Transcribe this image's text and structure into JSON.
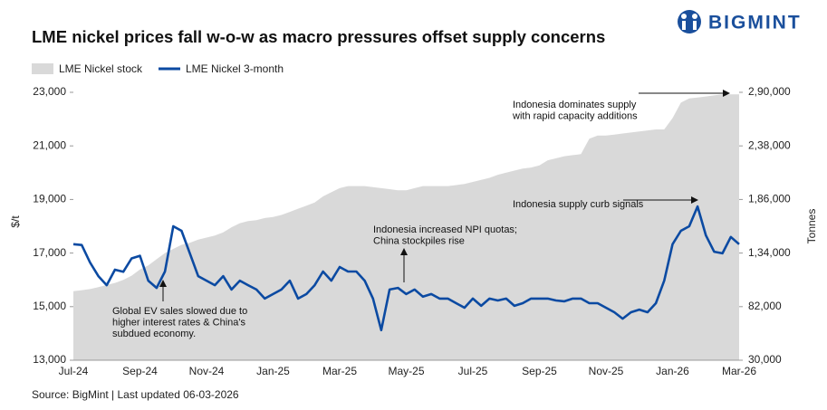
{
  "logo": "BIGMINT",
  "chart_data": {
    "type": "line-area",
    "title": "LME nickel prices fall w-o-w as macro pressures offset supply concerns",
    "source": "Source: BigMint | Last updated 06-03-2026",
    "ylabel": "$/t",
    "y2label": "Tonnes",
    "categories": [
      "Jul-24",
      null,
      null,
      null,
      null,
      null,
      null,
      null,
      "Sep-24",
      null,
      null,
      null,
      null,
      null,
      null,
      null,
      "Nov-24",
      null,
      null,
      null,
      null,
      null,
      null,
      null,
      "Jan-25",
      null,
      null,
      null,
      null,
      null,
      null,
      null,
      "Mar-25",
      null,
      null,
      null,
      null,
      null,
      null,
      null,
      "May-25",
      null,
      null,
      null,
      null,
      null,
      null,
      null,
      "Jul-25",
      null,
      null,
      null,
      null,
      null,
      null,
      null,
      "Sep-25",
      null,
      null,
      null,
      null,
      null,
      null,
      null,
      "Nov-25",
      null,
      null,
      null,
      null,
      null,
      null,
      null,
      "Jan-26",
      null,
      null,
      null,
      null,
      null,
      null,
      null,
      "Mar-26"
    ],
    "series": [
      {
        "name": "LME Nickel stock",
        "color": "#d9d9d9",
        "axis": "y2",
        "kind": "area",
        "values": [
          97000,
          98000,
          99000,
          101000,
          103000,
          105000,
          108000,
          112000,
          118000,
          122000,
          128000,
          134000,
          138000,
          142000,
          144000,
          147000,
          149000,
          151000,
          154000,
          159000,
          163000,
          165000,
          166000,
          168000,
          169000,
          171000,
          174000,
          177000,
          180000,
          183000,
          189000,
          193000,
          197000,
          199000,
          199000,
          199000,
          198000,
          197000,
          196000,
          195000,
          195000,
          197000,
          199000,
          199000,
          199000,
          199000,
          200000,
          201000,
          203000,
          205000,
          207000,
          210000,
          212000,
          214000,
          216000,
          217000,
          219000,
          224000,
          226000,
          228000,
          229000,
          230000,
          245000,
          248000,
          248000,
          249000,
          250000,
          251000,
          252000,
          253000,
          254000,
          254000,
          265000,
          280000,
          284000,
          285000,
          286000,
          287000,
          288000,
          288000,
          288000
        ]
      },
      {
        "name": "LME Nickel 3-month",
        "color": "#0b4aa2",
        "kind": "line",
        "values": [
          17330,
          17300,
          16650,
          16140,
          15800,
          16380,
          16300,
          16800,
          16900,
          15970,
          15700,
          16310,
          18000,
          17830,
          16990,
          16140,
          15970,
          15800,
          16140,
          15640,
          15970,
          15800,
          15640,
          15300,
          15470,
          15640,
          15970,
          15300,
          15470,
          15800,
          16310,
          15970,
          16480,
          16310,
          16310,
          15970,
          15300,
          14120,
          15640,
          15700,
          15470,
          15640,
          15370,
          15470,
          15300,
          15300,
          15130,
          14960,
          15300,
          15030,
          15300,
          15230,
          15300,
          15030,
          15130,
          15300,
          15300,
          15300,
          15230,
          15200,
          15300,
          15300,
          15130,
          15130,
          14960,
          14790,
          14550,
          14790,
          14890,
          14790,
          15130,
          15970,
          17330,
          17830,
          18000,
          18740,
          17660,
          17050,
          16990,
          17600,
          17330
        ]
      }
    ],
    "ylim": [
      13000,
      23000
    ],
    "yticks": [
      {
        "value": 13000,
        "label": "13,000"
      },
      {
        "value": 15000,
        "label": "15,000"
      },
      {
        "value": 17000,
        "label": "17,000"
      },
      {
        "value": 19000,
        "label": "19,000"
      },
      {
        "value": 21000,
        "label": "21,000"
      },
      {
        "value": 23000,
        "label": "23,000"
      }
    ],
    "y2lim": [
      30000,
      290000
    ],
    "y2ticks": [
      {
        "value": 30000,
        "label": "30,000"
      },
      {
        "value": 82000,
        "label": "82,000"
      },
      {
        "value": 134000,
        "label": "1,34,000"
      },
      {
        "value": 186000,
        "label": "1,86,000"
      },
      {
        "value": 238000,
        "label": "2,38,000"
      },
      {
        "value": 290000,
        "label": "2,90,000"
      }
    ],
    "annotations": [
      {
        "text": [
          "Indonesia dominates supply",
          "with rapid capacity additions"
        ]
      },
      {
        "text": [
          "Indonesia supply curb signals"
        ]
      },
      {
        "text": [
          "Indonesia increased NPI quotas;",
          "China stockpiles rise"
        ]
      },
      {
        "text": [
          "Global EV sales slowed due to",
          "higher interest rates & China's",
          "subdued economy."
        ]
      }
    ]
  }
}
